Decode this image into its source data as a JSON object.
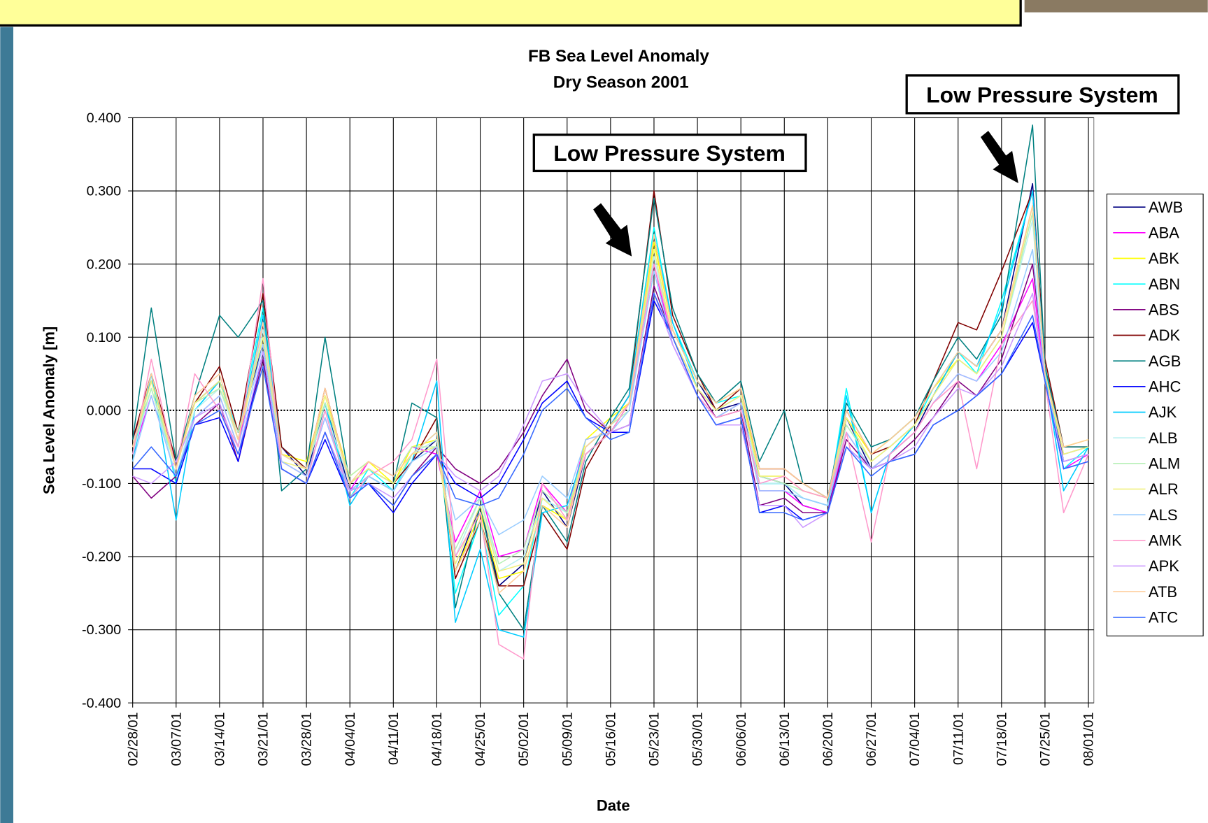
{
  "chart_data": {
    "type": "line",
    "title": "FB Sea Level Anomaly",
    "subtitle": "Dry Season 2001",
    "x_label": "Date",
    "y_label": "Sea Level Anomaly [m]",
    "annotations": [
      "Low Pressure System",
      "Low Pressure System"
    ],
    "grid": true,
    "legend": "right",
    "xlim": [
      "02/28/01",
      "08/01/01"
    ],
    "xticks": [
      "02/28/01",
      "03/07/01",
      "03/14/01",
      "03/21/01",
      "03/28/01",
      "04/04/01",
      "04/11/01",
      "04/18/01",
      "04/25/01",
      "05/02/01",
      "05/09/01",
      "05/16/01",
      "05/23/01",
      "05/30/01",
      "06/06/01",
      "06/13/01",
      "06/20/01",
      "06/27/01",
      "07/04/01",
      "07/11/01",
      "07/18/01",
      "07/25/01",
      "08/01/01"
    ],
    "ylim": [
      -0.4,
      0.4
    ],
    "yticks": [
      {
        "value": -0.4,
        "label": "-0.400"
      },
      {
        "value": -0.3,
        "label": "-0.300"
      },
      {
        "value": -0.2,
        "label": "-0.200"
      },
      {
        "value": -0.1,
        "label": "-0.100"
      },
      {
        "value": 0,
        "label": "0.000"
      },
      {
        "value": 0.1,
        "label": "0.100"
      },
      {
        "value": 0.2,
        "label": "0.200"
      },
      {
        "value": 0.3,
        "label": "0.300"
      },
      {
        "value": 0.4,
        "label": "0.400"
      }
    ],
    "x": [
      "02/28/01",
      "03/03/01",
      "03/07/01",
      "03/10/01",
      "03/14/01",
      "03/17/01",
      "03/21/01",
      "03/24/01",
      "03/28/01",
      "03/31/01",
      "04/04/01",
      "04/07/01",
      "04/11/01",
      "04/14/01",
      "04/18/01",
      "04/21/01",
      "04/25/01",
      "04/28/01",
      "05/02/01",
      "05/05/01",
      "05/09/01",
      "05/12/01",
      "05/16/01",
      "05/19/01",
      "05/23/01",
      "05/26/01",
      "05/30/01",
      "06/02/01",
      "06/06/01",
      "06/09/01",
      "06/13/01",
      "06/16/01",
      "06/20/01",
      "06/23/01",
      "06/27/01",
      "06/30/01",
      "07/04/01",
      "07/07/01",
      "07/11/01",
      "07/14/01",
      "07/18/01",
      "07/23/01",
      "07/25/01",
      "07/28/01",
      "08/01/01"
    ],
    "series": [
      {
        "name": "AWB",
        "color": "#000080",
        "values": [
          -0.04,
          0.04,
          -0.07,
          0.01,
          0.04,
          -0.03,
          0.09,
          -0.05,
          -0.09,
          0.01,
          -0.11,
          -0.09,
          -0.11,
          -0.07,
          -0.04,
          -0.22,
          -0.13,
          -0.24,
          -0.21,
          -0.11,
          -0.16,
          -0.06,
          -0.03,
          0.01,
          0.24,
          0.11,
          0.04,
          0.0,
          0.01,
          -0.09,
          -0.1,
          -0.13,
          -0.14,
          -0.01,
          -0.08,
          -0.06,
          -0.03,
          0.02,
          0.08,
          0.06,
          0.11,
          0.31,
          0.06,
          -0.07,
          -0.06
        ]
      },
      {
        "name": "ABA",
        "color": "#ff00ff",
        "values": [
          -0.06,
          0.02,
          -0.09,
          -0.01,
          0.02,
          -0.05,
          0.12,
          -0.07,
          -0.09,
          -0.01,
          -0.11,
          -0.07,
          -0.09,
          -0.05,
          -0.06,
          -0.18,
          -0.11,
          -0.2,
          -0.19,
          -0.1,
          -0.14,
          -0.04,
          -0.03,
          0.01,
          0.2,
          0.09,
          0.02,
          -0.01,
          0.01,
          -0.11,
          -0.11,
          -0.13,
          -0.14,
          -0.03,
          -0.08,
          -0.06,
          -0.03,
          0.01,
          0.05,
          0.04,
          0.09,
          0.18,
          0.04,
          -0.08,
          -0.06
        ]
      },
      {
        "name": "ABK",
        "color": "#ffff00",
        "values": [
          -0.05,
          0.04,
          -0.08,
          0.01,
          0.03,
          -0.04,
          0.11,
          -0.06,
          -0.07,
          0.02,
          -0.09,
          -0.07,
          -0.1,
          -0.05,
          -0.04,
          -0.22,
          -0.14,
          -0.23,
          -0.22,
          -0.13,
          -0.15,
          -0.04,
          -0.01,
          0.01,
          0.23,
          0.11,
          0.04,
          0.01,
          0.03,
          -0.09,
          -0.09,
          -0.11,
          -0.12,
          -0.01,
          -0.06,
          -0.04,
          -0.01,
          0.03,
          0.07,
          0.05,
          0.1,
          0.27,
          0.05,
          -0.05,
          -0.04
        ]
      },
      {
        "name": "ABN",
        "color": "#00ffff",
        "values": [
          -0.06,
          0.05,
          -0.1,
          0.0,
          0.04,
          -0.03,
          0.14,
          -0.05,
          -0.08,
          0.01,
          -0.12,
          -0.08,
          -0.11,
          -0.06,
          -0.03,
          -0.25,
          -0.15,
          -0.28,
          -0.24,
          -0.12,
          -0.14,
          -0.05,
          -0.02,
          0.02,
          0.25,
          0.12,
          0.04,
          0.01,
          0.02,
          -0.1,
          -0.1,
          -0.12,
          -0.13,
          0.03,
          -0.14,
          -0.06,
          -0.02,
          0.03,
          0.08,
          0.05,
          0.15,
          0.3,
          0.06,
          -0.08,
          -0.05
        ]
      },
      {
        "name": "ABS",
        "color": "#800080",
        "values": [
          -0.09,
          -0.12,
          -0.09,
          -0.02,
          0.01,
          -0.07,
          0.07,
          -0.08,
          -0.1,
          -0.03,
          -0.11,
          -0.1,
          -0.13,
          -0.09,
          -0.05,
          -0.08,
          -0.1,
          -0.08,
          -0.03,
          0.02,
          0.07,
          0.0,
          -0.03,
          -0.02,
          0.17,
          0.1,
          0.03,
          -0.01,
          0.0,
          -0.13,
          -0.12,
          -0.14,
          -0.14,
          -0.04,
          -0.08,
          -0.07,
          -0.04,
          -0.01,
          0.04,
          0.02,
          0.07,
          0.2,
          0.05,
          -0.06,
          -0.05
        ]
      },
      {
        "name": "ADK",
        "color": "#800000",
        "values": [
          -0.04,
          0.05,
          -0.07,
          0.01,
          0.06,
          -0.03,
          0.16,
          -0.05,
          -0.08,
          0.03,
          -0.1,
          -0.08,
          -0.1,
          -0.07,
          -0.01,
          -0.23,
          -0.15,
          -0.24,
          -0.24,
          -0.14,
          -0.19,
          -0.08,
          -0.02,
          0.02,
          0.3,
          0.13,
          0.05,
          0.0,
          0.03,
          -0.08,
          -0.08,
          -0.1,
          -0.12,
          0.0,
          -0.06,
          -0.05,
          -0.02,
          0.04,
          0.12,
          0.11,
          0.19,
          0.3,
          0.07,
          -0.05,
          -0.05
        ]
      },
      {
        "name": "AGB",
        "color": "#008080",
        "values": [
          -0.04,
          0.14,
          -0.07,
          0.02,
          0.13,
          0.1,
          0.15,
          -0.11,
          -0.08,
          0.1,
          -0.1,
          -0.08,
          -0.1,
          0.01,
          -0.01,
          -0.27,
          -0.13,
          -0.25,
          -0.3,
          -0.13,
          -0.18,
          -0.07,
          -0.01,
          0.03,
          0.29,
          0.14,
          0.05,
          0.01,
          0.04,
          -0.07,
          0.0,
          -0.1,
          -0.12,
          0.01,
          -0.05,
          -0.04,
          -0.01,
          0.04,
          0.1,
          0.07,
          0.13,
          0.39,
          0.06,
          -0.05,
          -0.05
        ]
      },
      {
        "name": "AHC",
        "color": "#0000ff",
        "values": [
          -0.08,
          -0.08,
          -0.1,
          -0.02,
          -0.01,
          -0.07,
          0.08,
          -0.08,
          -0.1,
          -0.04,
          -0.12,
          -0.1,
          -0.14,
          -0.1,
          -0.06,
          -0.1,
          -0.12,
          -0.1,
          -0.04,
          0.01,
          0.04,
          -0.01,
          -0.03,
          -0.03,
          0.15,
          0.1,
          0.02,
          -0.02,
          -0.01,
          -0.14,
          -0.13,
          -0.15,
          -0.14,
          -0.05,
          -0.08,
          -0.07,
          -0.06,
          -0.02,
          0.0,
          0.02,
          0.05,
          0.12,
          0.04,
          -0.08,
          -0.07
        ]
      },
      {
        "name": "AJK",
        "color": "#00ccff",
        "values": [
          -0.07,
          0.05,
          -0.15,
          0.0,
          0.04,
          -0.04,
          0.13,
          -0.06,
          -0.08,
          0.01,
          -0.13,
          -0.09,
          -0.11,
          -0.07,
          0.04,
          -0.29,
          -0.19,
          -0.3,
          -0.31,
          -0.14,
          -0.13,
          -0.05,
          -0.02,
          0.02,
          0.24,
          0.12,
          0.03,
          0.0,
          0.02,
          -0.1,
          -0.1,
          -0.12,
          -0.13,
          0.02,
          -0.14,
          -0.06,
          -0.02,
          0.02,
          0.08,
          0.06,
          0.14,
          0.3,
          0.05,
          -0.11,
          -0.05
        ]
      },
      {
        "name": "ALB",
        "color": "#b8f0f0",
        "values": [
          -0.06,
          0.03,
          -0.09,
          0.0,
          0.03,
          -0.04,
          0.11,
          -0.06,
          -0.08,
          0.0,
          -0.1,
          -0.08,
          -0.1,
          -0.06,
          -0.04,
          -0.2,
          -0.12,
          -0.22,
          -0.2,
          -0.12,
          -0.14,
          -0.05,
          -0.02,
          0.0,
          0.21,
          0.1,
          0.03,
          0.0,
          0.02,
          -0.1,
          -0.1,
          -0.12,
          -0.13,
          -0.02,
          -0.07,
          -0.05,
          -0.02,
          0.02,
          0.07,
          0.05,
          0.1,
          0.26,
          0.05,
          -0.06,
          -0.05
        ]
      },
      {
        "name": "ALM",
        "color": "#b8f0b8",
        "values": [
          -0.05,
          0.03,
          -0.08,
          0.01,
          0.03,
          -0.03,
          0.1,
          -0.06,
          -0.08,
          0.01,
          -0.09,
          -0.07,
          -0.09,
          -0.05,
          -0.05,
          -0.19,
          -0.12,
          -0.21,
          -0.19,
          -0.11,
          -0.14,
          -0.05,
          -0.02,
          0.0,
          0.22,
          0.1,
          0.03,
          0.0,
          0.02,
          -0.09,
          -0.1,
          -0.11,
          -0.12,
          -0.02,
          -0.07,
          -0.05,
          -0.02,
          0.02,
          0.07,
          0.05,
          0.1,
          0.27,
          0.05,
          -0.06,
          -0.05
        ]
      },
      {
        "name": "ALR",
        "color": "#f0f080",
        "values": [
          -0.05,
          0.04,
          -0.08,
          0.01,
          0.04,
          -0.04,
          0.1,
          -0.07,
          -0.08,
          0.02,
          -0.1,
          -0.08,
          -0.1,
          -0.06,
          -0.05,
          -0.21,
          -0.13,
          -0.22,
          -0.21,
          -0.12,
          -0.15,
          -0.05,
          -0.02,
          0.01,
          0.22,
          0.1,
          0.03,
          0.0,
          0.02,
          -0.09,
          -0.09,
          -0.11,
          -0.12,
          -0.01,
          -0.07,
          -0.05,
          -0.02,
          0.02,
          0.07,
          0.05,
          0.1,
          0.28,
          0.05,
          -0.06,
          -0.05
        ]
      },
      {
        "name": "ALS",
        "color": "#99ccff",
        "values": [
          -0.07,
          0.02,
          -0.09,
          -0.01,
          0.02,
          -0.05,
          0.09,
          -0.07,
          -0.09,
          -0.01,
          -0.11,
          -0.09,
          -0.11,
          -0.07,
          -0.05,
          -0.15,
          -0.12,
          -0.17,
          -0.15,
          -0.09,
          -0.12,
          -0.04,
          -0.03,
          0.0,
          0.19,
          0.09,
          0.02,
          -0.01,
          0.01,
          -0.11,
          -0.11,
          -0.12,
          -0.13,
          -0.03,
          -0.08,
          -0.06,
          -0.03,
          0.01,
          0.05,
          0.04,
          0.08,
          0.22,
          0.04,
          -0.07,
          -0.06
        ]
      },
      {
        "name": "AMK",
        "color": "#ff99cc",
        "values": [
          -0.06,
          0.07,
          -0.08,
          0.05,
          0.0,
          -0.05,
          0.18,
          -0.08,
          -0.1,
          0.0,
          -0.12,
          -0.09,
          -0.07,
          -0.04,
          0.07,
          -0.2,
          -0.14,
          -0.32,
          -0.34,
          -0.1,
          -0.15,
          -0.06,
          -0.03,
          0.01,
          0.2,
          0.1,
          0.02,
          -0.01,
          0.0,
          -0.1,
          -0.09,
          -0.11,
          -0.12,
          -0.03,
          -0.18,
          -0.06,
          -0.03,
          0.01,
          0.04,
          -0.08,
          0.09,
          0.15,
          0.04,
          -0.14,
          -0.06
        ]
      },
      {
        "name": "APK",
        "color": "#cc99ff",
        "values": [
          -0.09,
          -0.1,
          -0.07,
          -0.01,
          0.01,
          -0.06,
          0.08,
          -0.08,
          -0.1,
          -0.03,
          -0.11,
          -0.1,
          -0.12,
          -0.09,
          -0.06,
          -0.09,
          -0.11,
          -0.09,
          -0.02,
          0.04,
          0.05,
          0.01,
          -0.03,
          -0.02,
          0.16,
          0.09,
          0.02,
          -0.02,
          -0.02,
          -0.13,
          -0.13,
          -0.16,
          -0.14,
          -0.05,
          -0.08,
          -0.07,
          -0.05,
          -0.01,
          0.03,
          0.02,
          0.06,
          0.16,
          0.04,
          -0.07,
          -0.06
        ]
      },
      {
        "name": "ATB",
        "color": "#ffcc99",
        "values": [
          -0.05,
          0.05,
          -0.08,
          0.02,
          0.05,
          -0.04,
          0.12,
          -0.06,
          -0.08,
          0.03,
          -0.1,
          -0.07,
          -0.09,
          -0.06,
          -0.03,
          -0.22,
          -0.15,
          -0.25,
          -0.22,
          -0.13,
          -0.16,
          -0.05,
          -0.02,
          0.01,
          0.24,
          0.11,
          0.04,
          0.01,
          0.03,
          -0.08,
          -0.08,
          -0.1,
          -0.12,
          0.0,
          -0.06,
          -0.04,
          -0.01,
          0.03,
          0.08,
          0.06,
          0.11,
          0.28,
          0.05,
          -0.05,
          -0.04
        ]
      },
      {
        "name": "ATC",
        "color": "#3366ff",
        "values": [
          -0.08,
          -0.05,
          -0.09,
          -0.02,
          0.0,
          -0.06,
          0.06,
          -0.08,
          -0.1,
          -0.03,
          -0.12,
          -0.1,
          -0.13,
          -0.09,
          -0.06,
          -0.12,
          -0.13,
          -0.12,
          -0.06,
          0.0,
          0.03,
          -0.01,
          -0.04,
          -0.03,
          0.16,
          0.1,
          0.02,
          -0.02,
          -0.01,
          -0.14,
          -0.14,
          -0.15,
          -0.14,
          -0.05,
          -0.09,
          -0.07,
          -0.06,
          -0.02,
          0.0,
          0.02,
          0.05,
          0.13,
          0.04,
          -0.08,
          -0.07
        ]
      }
    ]
  }
}
